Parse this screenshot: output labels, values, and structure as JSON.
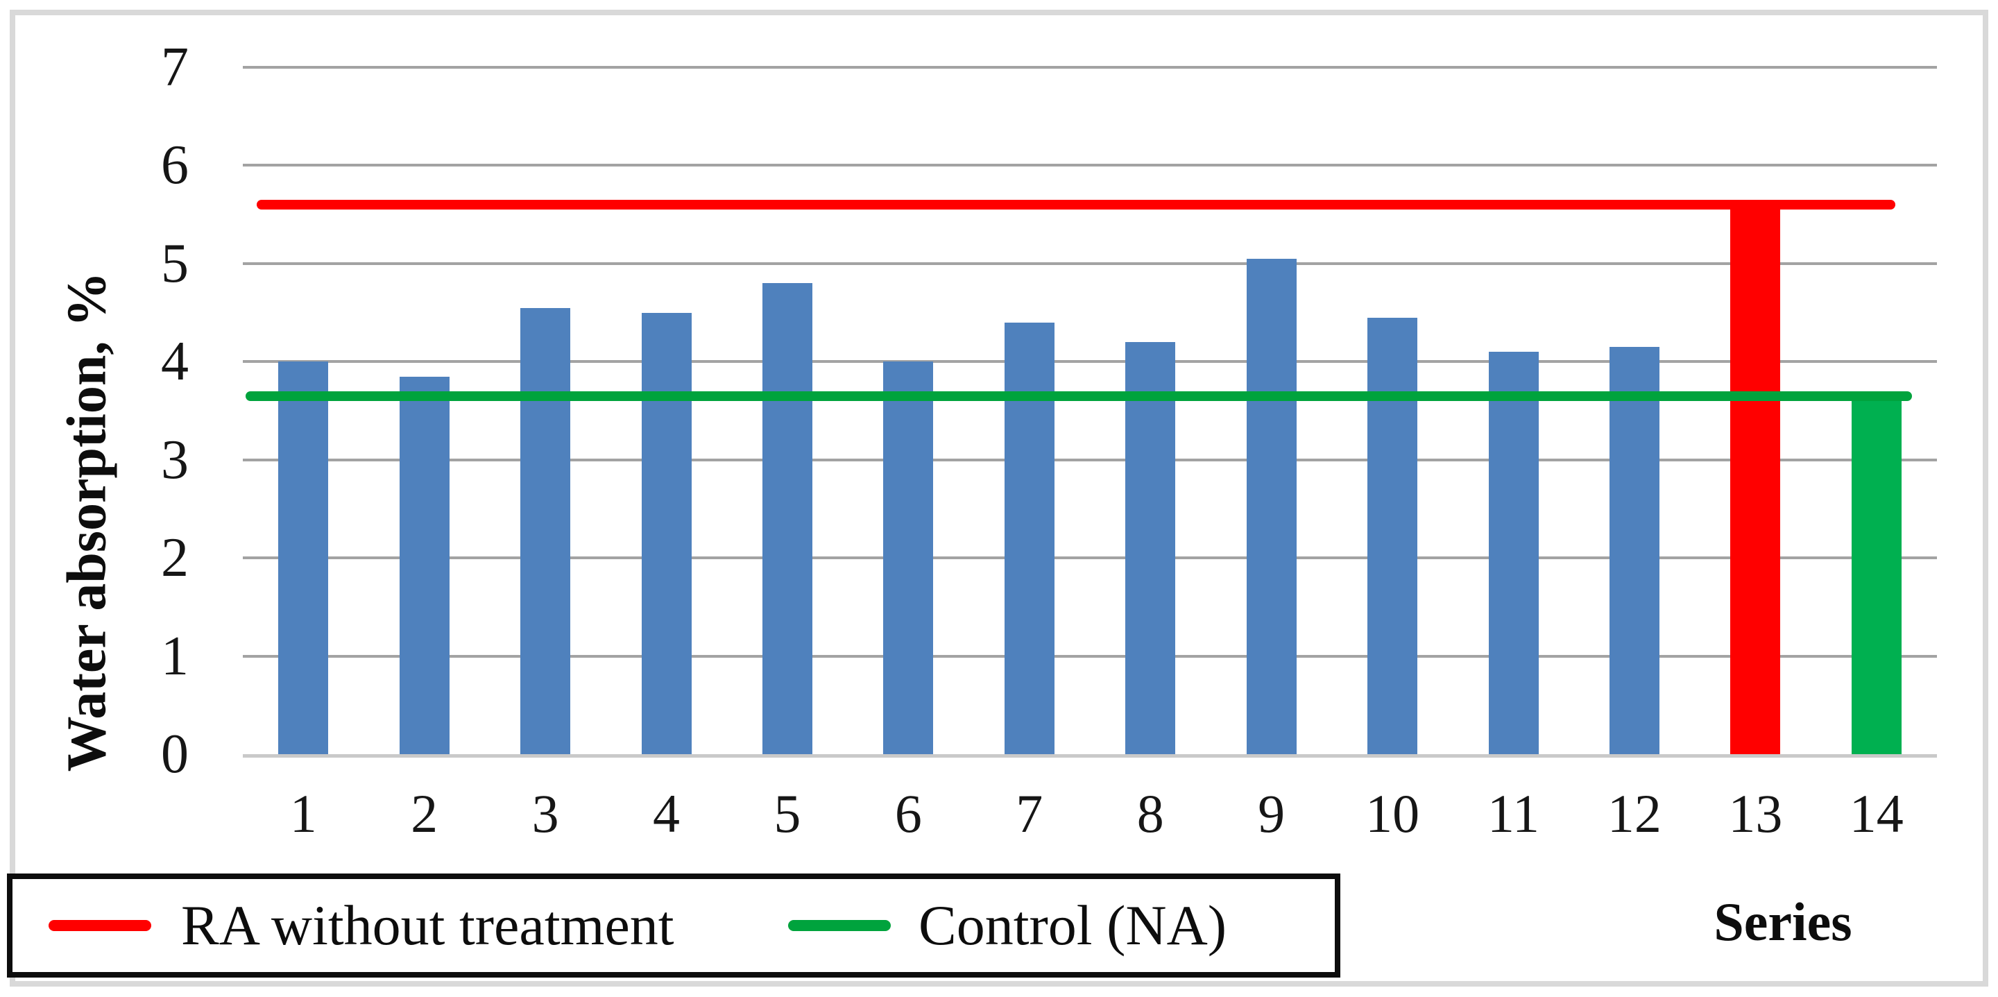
{
  "chart_data": {
    "type": "bar",
    "categories": [
      "1",
      "2",
      "3",
      "4",
      "5",
      "6",
      "7",
      "8",
      "9",
      "10",
      "11",
      "12",
      "13",
      "14"
    ],
    "values": [
      4.0,
      3.85,
      4.55,
      4.5,
      4.8,
      4.0,
      4.4,
      4.2,
      5.05,
      4.45,
      4.1,
      4.15,
      5.6,
      3.7
    ],
    "bar_colors": [
      "#4f81bd",
      "#4f81bd",
      "#4f81bd",
      "#4f81bd",
      "#4f81bd",
      "#4f81bd",
      "#4f81bd",
      "#4f81bd",
      "#4f81bd",
      "#4f81bd",
      "#4f81bd",
      "#4f81bd",
      "#ff0000",
      "#00b050"
    ],
    "xlabel": "Series",
    "ylabel": "Water absorption, %",
    "ylim": [
      0,
      7
    ],
    "ytick_labels": [
      "0",
      "1",
      "2",
      "3",
      "4",
      "5",
      "6",
      "7"
    ],
    "grid": true,
    "legend_position": "bottom-left",
    "ref_lines": [
      {
        "label": "RA without treatment",
        "value": 5.6,
        "color": "#ff0000"
      },
      {
        "label": "Control (NA)",
        "value": 3.65,
        "color": "#00a33d"
      }
    ]
  },
  "colors": {
    "bar_blue": "#4f81bd",
    "bar_red": "#ff0000",
    "bar_green": "#00b050",
    "ref_red": "#ff0000",
    "ref_green": "#00a33d",
    "gridline": "#a3a3a3",
    "axis_line": "#c9c9c9",
    "frame_border": "#d9d9d9",
    "legend_border": "#0d0d0d"
  }
}
